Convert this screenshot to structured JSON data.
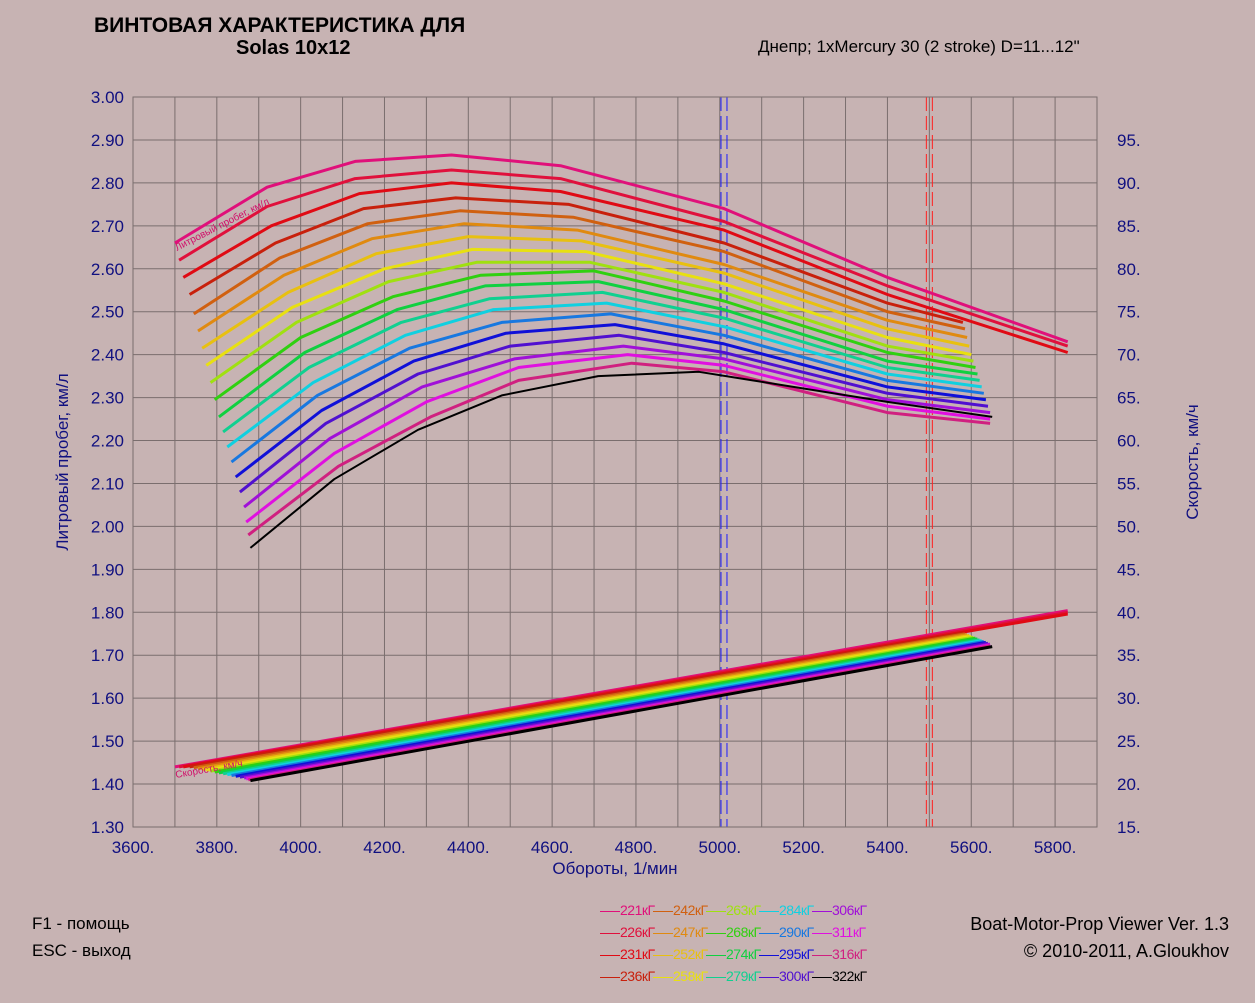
{
  "header": {
    "title_line1": "ВИНТОВАЯ ХАРАКТЕРИСТИКА ДЛЯ",
    "title_line2": "Solas 10x12",
    "subtitle": "Днепр; 1xMercury 30 (2 stroke) D=11...12\""
  },
  "footer": {
    "help_f1": "F1 - помощь",
    "help_esc": "ESC - выход",
    "app_name": "Boat-Motor-Prop Viewer Ver. 1.3",
    "copyright": "© 2010-2011, A.Gloukhov"
  },
  "chart_data": {
    "type": "line",
    "title": "ВИНТОВАЯ ХАРАКТЕРИСТИКА ДЛЯ Solas 10x12",
    "xlabel": "Обороты, 1/мин",
    "ylabel": "Литровый пробег, км/л",
    "y2label": "Скорость, км/ч",
    "xlim": [
      3600,
      5900
    ],
    "ylim": [
      1.3,
      3.0
    ],
    "y2lim": [
      15,
      100
    ],
    "grid": true,
    "x_ticks": [
      "3600.",
      "3800.",
      "4000.",
      "4200.",
      "4400.",
      "4600.",
      "4800.",
      "5000.",
      "5200.",
      "5400.",
      "5600.",
      "5800."
    ],
    "x_tick_values": [
      3600,
      3800,
      4000,
      4200,
      4400,
      4600,
      4800,
      5000,
      5200,
      5400,
      5600,
      5800
    ],
    "y_ticks": [
      "3.00",
      "2.90",
      "2.80",
      "2.70",
      "2.60",
      "2.50",
      "2.40",
      "2.30",
      "2.20",
      "2.10",
      "2.00",
      "1.90",
      "1.80",
      "1.70",
      "1.60",
      "1.50",
      "1.40",
      "1.30"
    ],
    "y_tick_values": [
      3.0,
      2.9,
      2.8,
      2.7,
      2.6,
      2.5,
      2.4,
      2.3,
      2.2,
      2.1,
      2.0,
      1.9,
      1.8,
      1.7,
      1.6,
      1.5,
      1.4,
      1.3
    ],
    "y2_ticks": [
      "95.",
      "90.",
      "85.",
      "80.",
      "75.",
      "70.",
      "65.",
      "60.",
      "55.",
      "50.",
      "45.",
      "40.",
      "35.",
      "30.",
      "25.",
      "20.",
      "15."
    ],
    "y2_tick_values": [
      95,
      90,
      85,
      80,
      75,
      70,
      65,
      60,
      55,
      50,
      45,
      40,
      35,
      30,
      25,
      20,
      15
    ],
    "annotations": {
      "fuel_curve_label": "Литровый пробег, км/л",
      "speed_curve_label": "Скорость, км/ч"
    },
    "reference_lines": [
      {
        "x": 5010,
        "color": "#1a1aff",
        "style": "dashed-double"
      },
      {
        "x": 5500,
        "color": "#ff2020",
        "style": "dashed-double"
      }
    ],
    "series": [
      {
        "name": "221кГ",
        "color": "#e0107a",
        "fuel": [
          [
            3700,
            2.66
          ],
          [
            3920,
            2.79
          ],
          [
            4130,
            2.85
          ],
          [
            4360,
            2.865
          ],
          [
            4620,
            2.84
          ],
          [
            5010,
            2.74
          ],
          [
            5400,
            2.58
          ],
          [
            5830,
            2.43
          ]
        ],
        "speed": [
          [
            3700,
            22.0
          ],
          [
            5830,
            40.2
          ]
        ]
      },
      {
        "name": "226кГ",
        "color": "#e0103c",
        "fuel": [
          [
            3710,
            2.62
          ],
          [
            3920,
            2.745
          ],
          [
            4130,
            2.81
          ],
          [
            4360,
            2.83
          ],
          [
            4620,
            2.81
          ],
          [
            5010,
            2.71
          ],
          [
            5400,
            2.56
          ],
          [
            5830,
            2.42
          ]
        ],
        "speed": [
          [
            3710,
            22.0
          ],
          [
            5830,
            40.0
          ]
        ]
      },
      {
        "name": "231кГ",
        "color": "#e00a14",
        "fuel": [
          [
            3720,
            2.58
          ],
          [
            3930,
            2.7
          ],
          [
            4140,
            2.775
          ],
          [
            4360,
            2.8
          ],
          [
            4620,
            2.78
          ],
          [
            5010,
            2.69
          ],
          [
            5400,
            2.54
          ],
          [
            5830,
            2.405
          ]
        ],
        "speed": [
          [
            3720,
            22.0
          ],
          [
            5830,
            39.8
          ]
        ]
      },
      {
        "name": "236кГ",
        "color": "#c8200c",
        "fuel": [
          [
            3735,
            2.54
          ],
          [
            3940,
            2.66
          ],
          [
            4150,
            2.74
          ],
          [
            4370,
            2.765
          ],
          [
            4640,
            2.75
          ],
          [
            5010,
            2.66
          ],
          [
            5400,
            2.52
          ],
          [
            5580,
            2.475
          ]
        ],
        "speed": [
          [
            3735,
            22.0
          ],
          [
            5580,
            37.6
          ]
        ]
      },
      {
        "name": "242кГ",
        "color": "#d06010",
        "fuel": [
          [
            3745,
            2.495
          ],
          [
            3950,
            2.625
          ],
          [
            4160,
            2.705
          ],
          [
            4380,
            2.735
          ],
          [
            4650,
            2.72
          ],
          [
            5010,
            2.64
          ],
          [
            5400,
            2.5
          ],
          [
            5585,
            2.46
          ]
        ],
        "speed": [
          [
            3745,
            21.9
          ],
          [
            5585,
            37.5
          ]
        ]
      },
      {
        "name": "247кГ",
        "color": "#e08a10",
        "fuel": [
          [
            3755,
            2.455
          ],
          [
            3960,
            2.585
          ],
          [
            4170,
            2.67
          ],
          [
            4390,
            2.705
          ],
          [
            4660,
            2.69
          ],
          [
            5010,
            2.61
          ],
          [
            5400,
            2.48
          ],
          [
            5590,
            2.44
          ]
        ],
        "speed": [
          [
            3755,
            21.8
          ],
          [
            5590,
            37.4
          ]
        ]
      },
      {
        "name": "252кГ",
        "color": "#e8c010",
        "fuel": [
          [
            3765,
            2.415
          ],
          [
            3970,
            2.545
          ],
          [
            4180,
            2.635
          ],
          [
            4400,
            2.675
          ],
          [
            4670,
            2.665
          ],
          [
            5010,
            2.59
          ],
          [
            5400,
            2.46
          ],
          [
            5595,
            2.42
          ]
        ],
        "speed": [
          [
            3765,
            21.7
          ],
          [
            5595,
            37.3
          ]
        ]
      },
      {
        "name": "258кГ",
        "color": "#e8e010",
        "fuel": [
          [
            3775,
            2.375
          ],
          [
            3980,
            2.51
          ],
          [
            4200,
            2.6
          ],
          [
            4410,
            2.645
          ],
          [
            4680,
            2.64
          ],
          [
            5010,
            2.565
          ],
          [
            5400,
            2.44
          ],
          [
            5600,
            2.4
          ]
        ],
        "speed": [
          [
            3775,
            21.6
          ],
          [
            5600,
            37.2
          ]
        ]
      },
      {
        "name": "263кГ",
        "color": "#a0e010",
        "fuel": [
          [
            3785,
            2.335
          ],
          [
            3990,
            2.475
          ],
          [
            4210,
            2.57
          ],
          [
            4420,
            2.615
          ],
          [
            4690,
            2.615
          ],
          [
            5010,
            2.545
          ],
          [
            5400,
            2.42
          ],
          [
            5605,
            2.385
          ]
        ],
        "speed": [
          [
            3785,
            21.5
          ],
          [
            5605,
            37.1
          ]
        ]
      },
      {
        "name": "268кГ",
        "color": "#30d010",
        "fuel": [
          [
            3795,
            2.295
          ],
          [
            4000,
            2.44
          ],
          [
            4220,
            2.535
          ],
          [
            4430,
            2.585
          ],
          [
            4700,
            2.595
          ],
          [
            5010,
            2.525
          ],
          [
            5400,
            2.405
          ],
          [
            5610,
            2.37
          ]
        ],
        "speed": [
          [
            3795,
            21.4
          ],
          [
            5610,
            37.0
          ]
        ]
      },
      {
        "name": "274кГ",
        "color": "#10d040",
        "fuel": [
          [
            3805,
            2.255
          ],
          [
            4010,
            2.405
          ],
          [
            4230,
            2.505
          ],
          [
            4440,
            2.56
          ],
          [
            4710,
            2.57
          ],
          [
            5010,
            2.505
          ],
          [
            5400,
            2.385
          ],
          [
            5615,
            2.355
          ]
        ],
        "speed": [
          [
            3805,
            21.3
          ],
          [
            5615,
            36.9
          ]
        ]
      },
      {
        "name": "279кГ",
        "color": "#10d090",
        "fuel": [
          [
            3815,
            2.22
          ],
          [
            4020,
            2.37
          ],
          [
            4240,
            2.475
          ],
          [
            4450,
            2.53
          ],
          [
            4720,
            2.545
          ],
          [
            5010,
            2.485
          ],
          [
            5400,
            2.37
          ],
          [
            5620,
            2.34
          ]
        ],
        "speed": [
          [
            3815,
            21.2
          ],
          [
            5620,
            36.8
          ]
        ]
      },
      {
        "name": "284кГ",
        "color": "#10d0e0",
        "fuel": [
          [
            3825,
            2.185
          ],
          [
            4030,
            2.335
          ],
          [
            4250,
            2.445
          ],
          [
            4460,
            2.505
          ],
          [
            4730,
            2.52
          ],
          [
            5010,
            2.465
          ],
          [
            5400,
            2.355
          ],
          [
            5625,
            2.325
          ]
        ],
        "speed": [
          [
            3825,
            21.1
          ],
          [
            5625,
            36.7
          ]
        ]
      },
      {
        "name": "290кГ",
        "color": "#1878e0",
        "fuel": [
          [
            3835,
            2.15
          ],
          [
            4040,
            2.305
          ],
          [
            4260,
            2.415
          ],
          [
            4480,
            2.475
          ],
          [
            4740,
            2.495
          ],
          [
            5010,
            2.445
          ],
          [
            5400,
            2.34
          ],
          [
            5630,
            2.31
          ]
        ],
        "speed": [
          [
            3835,
            21.0
          ],
          [
            5630,
            36.6
          ]
        ]
      },
      {
        "name": "295кГ",
        "color": "#1010d8",
        "fuel": [
          [
            3845,
            2.115
          ],
          [
            4050,
            2.27
          ],
          [
            4270,
            2.385
          ],
          [
            4490,
            2.45
          ],
          [
            4750,
            2.47
          ],
          [
            5010,
            2.425
          ],
          [
            5400,
            2.325
          ],
          [
            5635,
            2.295
          ]
        ],
        "speed": [
          [
            3845,
            20.9
          ],
          [
            5635,
            36.5
          ]
        ]
      },
      {
        "name": "300кГ",
        "color": "#5010d0",
        "fuel": [
          [
            3855,
            2.08
          ],
          [
            4060,
            2.24
          ],
          [
            4280,
            2.355
          ],
          [
            4500,
            2.42
          ],
          [
            4760,
            2.445
          ],
          [
            5010,
            2.405
          ],
          [
            5400,
            2.31
          ],
          [
            5640,
            2.28
          ]
        ],
        "speed": [
          [
            3855,
            20.8
          ],
          [
            5640,
            36.4
          ]
        ]
      },
      {
        "name": "306кГ",
        "color": "#a010d8",
        "fuel": [
          [
            3865,
            2.045
          ],
          [
            4070,
            2.205
          ],
          [
            4290,
            2.325
          ],
          [
            4510,
            2.39
          ],
          [
            4770,
            2.42
          ],
          [
            5010,
            2.39
          ],
          [
            5400,
            2.295
          ],
          [
            5645,
            2.265
          ]
        ],
        "speed": [
          [
            3865,
            20.7
          ],
          [
            5645,
            36.3
          ]
        ]
      },
      {
        "name": "311кГ",
        "color": "#e010e0",
        "fuel": [
          [
            3870,
            2.01
          ],
          [
            4080,
            2.17
          ],
          [
            4300,
            2.29
          ],
          [
            4520,
            2.37
          ],
          [
            4780,
            2.4
          ],
          [
            5010,
            2.375
          ],
          [
            5400,
            2.28
          ],
          [
            5645,
            2.25
          ]
        ],
        "speed": [
          [
            3870,
            20.6
          ],
          [
            5645,
            36.2
          ]
        ]
      },
      {
        "name": "316кГ",
        "color": "#d02080",
        "fuel": [
          [
            3875,
            1.98
          ],
          [
            4090,
            2.14
          ],
          [
            4310,
            2.255
          ],
          [
            4520,
            2.34
          ],
          [
            4790,
            2.38
          ],
          [
            5010,
            2.36
          ],
          [
            5400,
            2.265
          ],
          [
            5645,
            2.24
          ]
        ],
        "speed": [
          [
            3875,
            20.5
          ],
          [
            5645,
            36.1
          ]
        ]
      },
      {
        "name": "322кГ",
        "color": "#000000",
        "fuel": [
          [
            3880,
            1.95
          ],
          [
            4080,
            2.11
          ],
          [
            4280,
            2.225
          ],
          [
            4480,
            2.305
          ],
          [
            4710,
            2.35
          ],
          [
            4950,
            2.36
          ],
          [
            5400,
            2.29
          ],
          [
            5650,
            2.255
          ]
        ],
        "speed": [
          [
            3880,
            20.4
          ],
          [
            5650,
            36.0
          ]
        ]
      }
    ]
  }
}
